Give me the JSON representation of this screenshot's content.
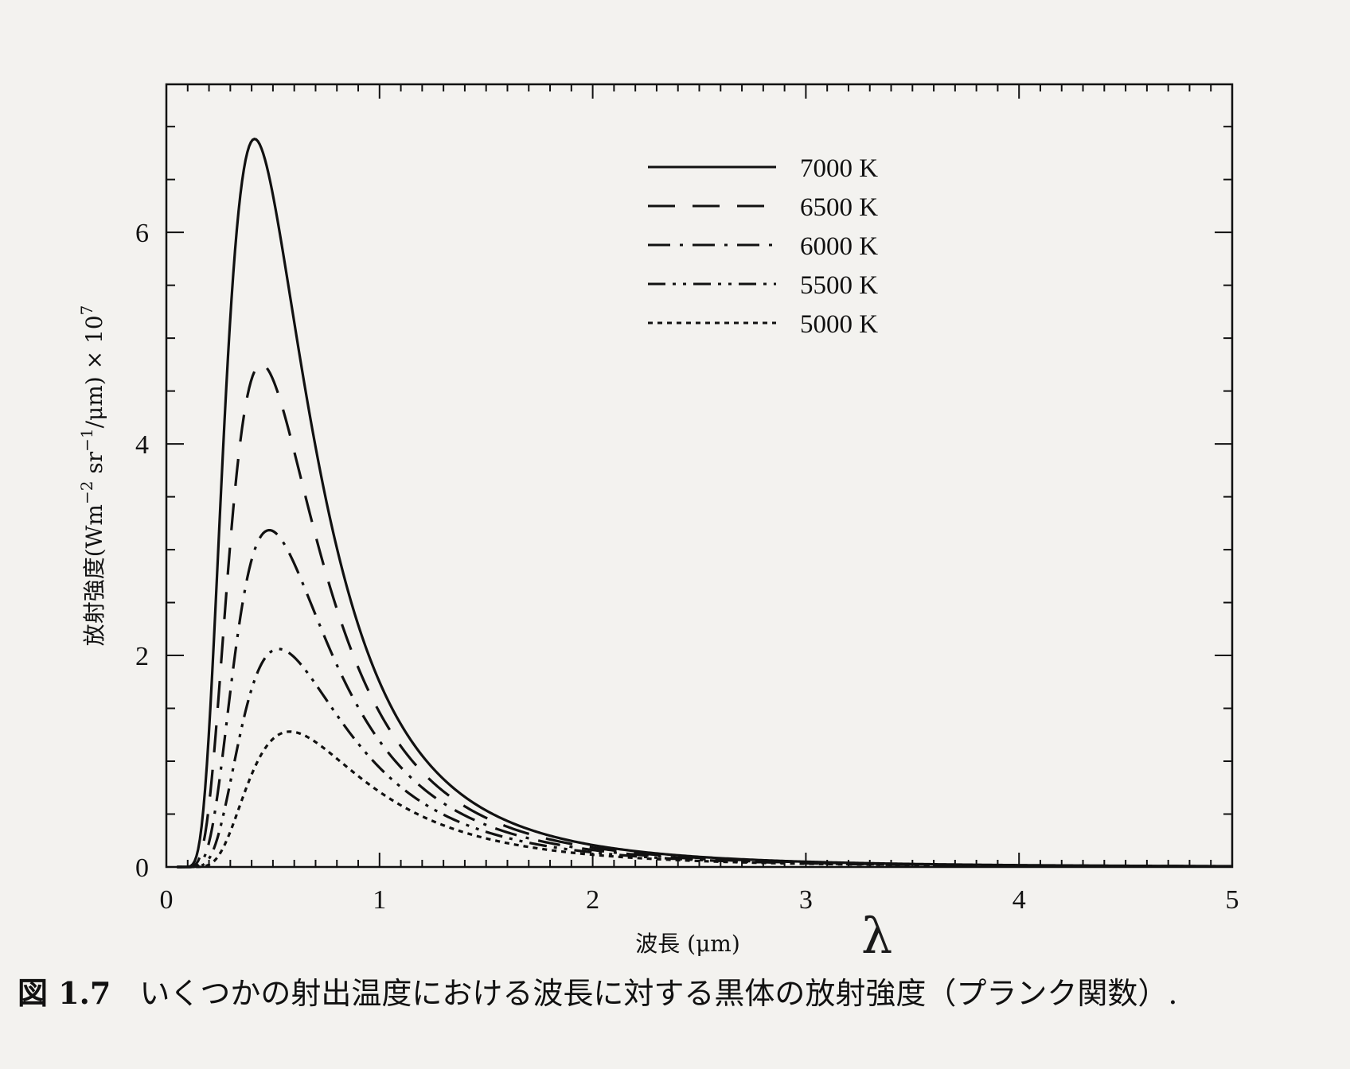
{
  "chart_data": {
    "type": "line",
    "xlabel": "波長 (μm)",
    "ylabel_main": "放射強度(Wm",
    "ylabel_sup1": "−2",
    "ylabel_mid": " sr",
    "ylabel_sup2": "−1",
    "ylabel_end": "/μm)  × 10",
    "ylabel_sup3": "7",
    "xlim": [
      0,
      5
    ],
    "ylim": [
      0,
      7.4
    ],
    "xticks": [
      "0",
      "1",
      "2",
      "3",
      "4",
      "5"
    ],
    "yticks": [
      "0",
      "2",
      "4",
      "6"
    ],
    "grid": false,
    "legend_position": "top-right",
    "series": [
      {
        "name": "7000 K",
        "temperature_k": 7000,
        "dash": "solid"
      },
      {
        "name": "6500 K",
        "temperature_k": 6500,
        "dash": "long-dash"
      },
      {
        "name": "6000 K",
        "temperature_k": 6000,
        "dash": "dash-dot"
      },
      {
        "name": "5500 K",
        "temperature_k": 5500,
        "dash": "dash-dot-dot"
      },
      {
        "name": "5000 K",
        "temperature_k": 5000,
        "dash": "dotted"
      }
    ]
  },
  "caption": {
    "figure_number": "図 1.7",
    "text": "いくつかの射出温度における波長に対する黒体の放射強度（プランク関数）."
  },
  "annotation": {
    "handwritten": "λ"
  }
}
